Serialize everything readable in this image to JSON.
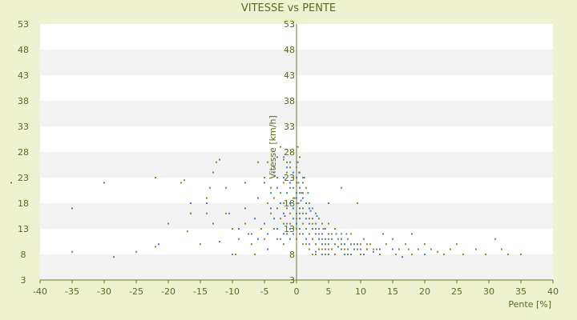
{
  "chart_data": {
    "type": "scatter",
    "title": "VITESSE vs PENTE",
    "xlabel": "Pente [%]",
    "ylabel": "Vitesse [km/h]",
    "xlim": [
      -40,
      40
    ],
    "ylim": [
      3,
      53
    ],
    "x_ticks": [
      "-40",
      "-35",
      "-30",
      "-25",
      "-20",
      "-15",
      "-10",
      "-5",
      "0",
      "5",
      "10",
      "15",
      "20",
      "25",
      "30",
      "35",
      "40"
    ],
    "y_ticks_left": [
      "3",
      "8",
      "13",
      "18",
      "23",
      "28",
      "33",
      "38",
      "43",
      "48",
      "53"
    ],
    "y_ticks_axis": [
      "3",
      "8",
      "13",
      "18",
      "23",
      "28",
      "33",
      "38",
      "43",
      "48",
      "53"
    ],
    "grid": "horizontal alternating bands",
    "colors": {
      "background": "#eef2d0",
      "plot": "#ffffff",
      "band": "#f2f2f2",
      "text": "#556b1f",
      "series_a": "#3a7fd0",
      "series_b": "#8a8a2a"
    },
    "series": [
      {
        "color": "#3a7fd0",
        "points": [
          [
            -28.5,
            7.5
          ],
          [
            -21.5,
            10
          ],
          [
            -16.5,
            18
          ],
          [
            -14,
            18
          ],
          [
            -16.5,
            16
          ],
          [
            -13,
            14
          ],
          [
            -10.5,
            16
          ],
          [
            -12,
            10.5
          ],
          [
            -10,
            8
          ],
          [
            -7,
            12
          ],
          [
            -6.5,
            15
          ],
          [
            -6,
            19
          ],
          [
            -5,
            14
          ],
          [
            -4.5,
            12
          ],
          [
            -4.5,
            9
          ],
          [
            -4,
            20
          ],
          [
            -4,
            17
          ],
          [
            -3.5,
            24
          ],
          [
            -3.5,
            15
          ],
          [
            -3,
            21
          ],
          [
            -3,
            13
          ],
          [
            -2.5,
            18
          ],
          [
            -2.5,
            11
          ],
          [
            -2,
            23
          ],
          [
            -2,
            16
          ],
          [
            -2,
            12
          ],
          [
            -1.5,
            25
          ],
          [
            -1.5,
            20
          ],
          [
            -1.5,
            14
          ],
          [
            -1,
            22
          ],
          [
            -1,
            18
          ],
          [
            -1,
            13
          ],
          [
            -1,
            11
          ],
          [
            -0.5,
            24
          ],
          [
            -0.5,
            21
          ],
          [
            -0.5,
            17
          ],
          [
            -0.5,
            15
          ],
          [
            -0.5,
            12
          ],
          [
            0,
            23
          ],
          [
            0,
            20
          ],
          [
            0,
            19
          ],
          [
            0,
            16
          ],
          [
            0,
            14
          ],
          [
            0.3,
            22
          ],
          [
            0.3,
            18
          ],
          [
            0.5,
            21
          ],
          [
            0.5,
            17
          ],
          [
            0.5,
            15
          ],
          [
            0.5,
            13
          ],
          [
            0.8,
            20
          ],
          [
            1,
            22
          ],
          [
            1,
            19
          ],
          [
            1,
            16
          ],
          [
            1,
            12
          ],
          [
            1.5,
            18
          ],
          [
            1.5,
            15
          ],
          [
            1.5,
            11
          ],
          [
            2,
            17
          ],
          [
            2,
            14
          ],
          [
            2,
            12
          ],
          [
            2,
            10
          ],
          [
            2.5,
            15
          ],
          [
            2.5,
            13
          ],
          [
            2.5,
            11
          ],
          [
            3,
            14
          ],
          [
            3,
            12
          ],
          [
            3,
            10
          ],
          [
            3,
            8.5
          ],
          [
            3.5,
            13
          ],
          [
            3.5,
            11
          ],
          [
            3.5,
            9
          ],
          [
            4,
            12
          ],
          [
            4,
            10
          ],
          [
            4,
            8
          ],
          [
            4.5,
            11
          ],
          [
            4.5,
            9
          ],
          [
            5,
            18
          ],
          [
            5,
            12
          ],
          [
            5,
            10
          ],
          [
            5,
            8
          ],
          [
            5.5,
            11
          ],
          [
            5.5,
            9
          ],
          [
            6,
            10
          ],
          [
            6,
            8
          ],
          [
            6.5,
            9.5
          ],
          [
            7,
            11
          ],
          [
            7,
            9
          ],
          [
            7.5,
            10
          ],
          [
            7.5,
            8
          ],
          [
            8,
            9
          ],
          [
            8.5,
            10
          ],
          [
            8.5,
            8
          ],
          [
            9,
            9
          ],
          [
            9.5,
            10
          ],
          [
            10,
            9
          ],
          [
            10.5,
            8
          ],
          [
            11,
            9
          ],
          [
            12,
            8.5
          ],
          [
            13,
            9
          ],
          [
            15,
            9
          ],
          [
            16.5,
            7.5
          ],
          [
            18,
            12
          ],
          [
            20,
            8
          ],
          [
            -8,
            17
          ],
          [
            -9,
            13
          ],
          [
            -6,
            11
          ],
          [
            -5,
            22
          ],
          [
            -2,
            27
          ],
          [
            -1,
            26
          ],
          [
            0.2,
            26
          ],
          [
            0.4,
            24
          ],
          [
            1.2,
            23
          ],
          [
            -0.3,
            19
          ],
          [
            0.7,
            18.5
          ],
          [
            1.8,
            20
          ],
          [
            -1.8,
            15.5
          ],
          [
            2.2,
            16.5
          ],
          [
            3.2,
            15.5
          ],
          [
            4.2,
            13
          ],
          [
            6.2,
            12
          ],
          [
            7.8,
            12
          ]
        ]
      },
      {
        "color": "#8a8a2a",
        "points": [
          [
            -35,
            17
          ],
          [
            -35,
            8.5
          ],
          [
            -30,
            22
          ],
          [
            -28.5,
            7.5
          ],
          [
            -25,
            8.5
          ],
          [
            -22,
            9.5
          ],
          [
            -22,
            23
          ],
          [
            -20,
            14
          ],
          [
            -18,
            22
          ],
          [
            -17.5,
            22.5
          ],
          [
            -17,
            12.5
          ],
          [
            -16.5,
            16
          ],
          [
            -15,
            10
          ],
          [
            -14,
            19
          ],
          [
            -14,
            16
          ],
          [
            -13.5,
            21
          ],
          [
            -13,
            24
          ],
          [
            -12.5,
            26
          ],
          [
            -12,
            26.5
          ],
          [
            -11,
            21
          ],
          [
            -11,
            16
          ],
          [
            -10,
            13
          ],
          [
            -9.5,
            8
          ],
          [
            -9,
            11
          ],
          [
            -8,
            22
          ],
          [
            -8,
            14
          ],
          [
            -7.5,
            12
          ],
          [
            -7,
            10
          ],
          [
            -6.5,
            8
          ],
          [
            -6,
            26
          ],
          [
            -5.5,
            13
          ],
          [
            -5,
            23
          ],
          [
            -5,
            11
          ],
          [
            -4.5,
            26
          ],
          [
            -4.5,
            18
          ],
          [
            -4,
            21
          ],
          [
            -4,
            16
          ],
          [
            -3.5,
            25
          ],
          [
            -3.5,
            19
          ],
          [
            -3.5,
            13
          ],
          [
            -3,
            23
          ],
          [
            -3,
            17
          ],
          [
            -3,
            11
          ],
          [
            -2.5,
            20
          ],
          [
            -2.5,
            15
          ],
          [
            -2,
            26.5
          ],
          [
            -2,
            22
          ],
          [
            -2,
            18
          ],
          [
            -2,
            14
          ],
          [
            -2,
            10
          ],
          [
            -1.5,
            24
          ],
          [
            -1.5,
            17
          ],
          [
            -1.5,
            12
          ],
          [
            -1,
            25
          ],
          [
            -1,
            21
          ],
          [
            -1,
            16
          ],
          [
            -1,
            14
          ],
          [
            -0.5,
            23
          ],
          [
            -0.5,
            19
          ],
          [
            -0.5,
            13
          ],
          [
            0,
            25
          ],
          [
            0,
            22
          ],
          [
            0,
            18
          ],
          [
            0,
            15
          ],
          [
            0,
            13
          ],
          [
            0,
            11
          ],
          [
            0.5,
            27
          ],
          [
            0.5,
            24
          ],
          [
            0.5,
            20
          ],
          [
            0.5,
            16
          ],
          [
            0.5,
            12
          ],
          [
            1,
            23
          ],
          [
            1,
            20
          ],
          [
            1,
            17
          ],
          [
            1,
            14
          ],
          [
            1,
            10
          ],
          [
            1.5,
            21
          ],
          [
            1.5,
            16
          ],
          [
            1.5,
            13
          ],
          [
            1.5,
            10
          ],
          [
            2,
            18
          ],
          [
            2,
            15
          ],
          [
            2,
            12
          ],
          [
            2,
            9
          ],
          [
            2.5,
            17
          ],
          [
            2.5,
            14
          ],
          [
            2.5,
            11
          ],
          [
            2.5,
            8
          ],
          [
            3,
            16
          ],
          [
            3,
            13
          ],
          [
            3,
            10
          ],
          [
            3,
            8
          ],
          [
            3.5,
            15
          ],
          [
            3.5,
            12
          ],
          [
            3.5,
            9
          ],
          [
            4,
            14
          ],
          [
            4,
            11
          ],
          [
            4,
            9
          ],
          [
            4.5,
            13
          ],
          [
            4.5,
            10
          ],
          [
            4.5,
            8
          ],
          [
            5,
            14
          ],
          [
            5,
            11
          ],
          [
            5,
            9
          ],
          [
            5.5,
            12
          ],
          [
            5.5,
            9
          ],
          [
            6,
            13
          ],
          [
            6,
            10
          ],
          [
            6,
            8
          ],
          [
            6.5,
            11
          ],
          [
            7,
            21
          ],
          [
            7,
            12
          ],
          [
            7,
            10
          ],
          [
            7.5,
            9
          ],
          [
            8,
            11
          ],
          [
            8,
            8
          ],
          [
            8.5,
            12
          ],
          [
            9,
            10
          ],
          [
            9.5,
            9
          ],
          [
            9.5,
            18
          ],
          [
            10,
            10
          ],
          [
            10,
            8
          ],
          [
            10.5,
            11
          ],
          [
            11,
            9
          ],
          [
            11,
            10
          ],
          [
            11.5,
            10
          ],
          [
            12,
            9
          ],
          [
            12.5,
            9
          ],
          [
            13,
            8
          ],
          [
            13.5,
            12
          ],
          [
            14,
            10
          ],
          [
            15,
            11
          ],
          [
            15.5,
            8
          ],
          [
            16,
            9
          ],
          [
            17,
            10
          ],
          [
            17.5,
            9
          ],
          [
            18,
            8
          ],
          [
            19,
            9
          ],
          [
            20,
            10
          ],
          [
            21,
            9
          ],
          [
            22,
            8.5
          ],
          [
            23,
            8
          ],
          [
            24,
            9
          ],
          [
            25,
            10
          ],
          [
            26,
            8
          ],
          [
            28,
            9
          ],
          [
            29.5,
            8
          ],
          [
            31,
            11
          ],
          [
            32,
            9
          ],
          [
            33,
            8
          ],
          [
            35,
            8
          ],
          [
            -3,
            27
          ],
          [
            -1.5,
            26
          ],
          [
            0.2,
            29
          ],
          [
            -2.5,
            29
          ],
          [
            -0.8,
            28
          ]
        ]
      }
    ],
    "outlier": {
      "x": -44.5,
      "y": 22
    }
  }
}
